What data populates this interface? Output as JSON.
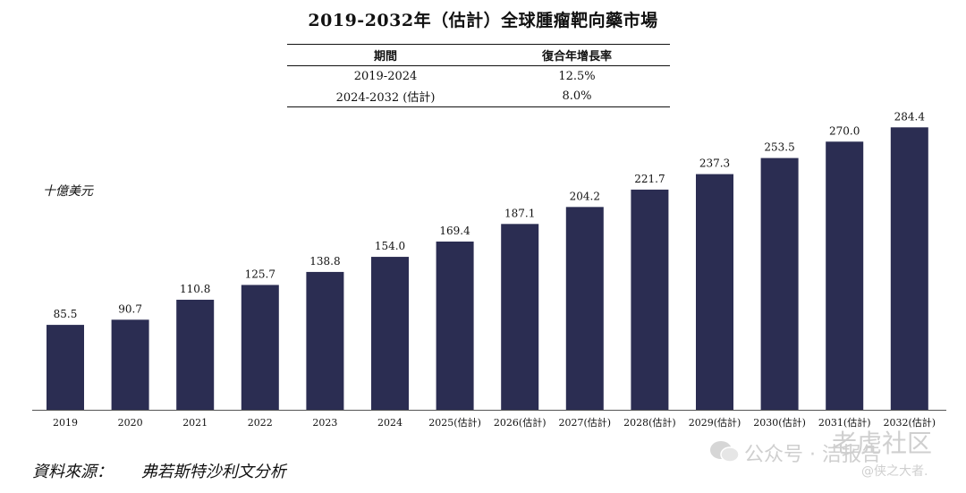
{
  "title": "2019-2032年（估計）全球腫瘤靶向藥市場",
  "cagr_table": {
    "headers": [
      "期間",
      "復合年增長率"
    ],
    "rows": [
      [
        "2019-2024",
        "12.5%"
      ],
      [
        "2024-2032 (估計)",
        "8.0%"
      ]
    ]
  },
  "source": {
    "label": "資料來源：",
    "text": "弗若斯特沙利文分析"
  },
  "watermark": {
    "wechat": "公众号 · 洁报告",
    "brand": "老虎社区",
    "handle": "@侠之大者."
  },
  "chart_data": {
    "type": "bar",
    "ylabel": "十億美元",
    "categories": [
      "2019",
      "2020",
      "2021",
      "2022",
      "2023",
      "2024",
      "2025(估計)",
      "2026(估計)",
      "2027(估計)",
      "2028(估計)",
      "2029(估計)",
      "2030(估計)",
      "2031(估計)",
      "2032(估計)"
    ],
    "values": [
      85.5,
      90.7,
      110.8,
      125.7,
      138.8,
      154.0,
      169.4,
      187.1,
      204.2,
      221.7,
      237.3,
      253.5,
      270.0,
      284.4
    ],
    "value_labels": [
      "85.5",
      "90.7",
      "110.8",
      "125.7",
      "138.8",
      "154.0",
      "169.4",
      "187.1",
      "204.2",
      "221.7",
      "237.3",
      "253.5",
      "270.0",
      "284.4"
    ],
    "ylim": [
      0,
      300
    ],
    "bar_color": "#2b2d52",
    "grid": false,
    "legend": "none"
  }
}
